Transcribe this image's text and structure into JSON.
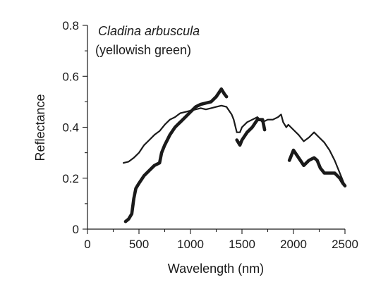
{
  "chart_data": {
    "type": "line",
    "title": "Cladina arbuscula",
    "subtitle": "(yellowish green)",
    "xlabel": "Wavelength (nm)",
    "ylabel": "Reflectance",
    "xlim": [
      0,
      2500
    ],
    "ylim": [
      0,
      0.8
    ],
    "x_ticks": [
      0,
      500,
      1000,
      1500,
      2000,
      2500
    ],
    "x_tick_labels": [
      "0",
      "500",
      "1000",
      "1500",
      "2000",
      "2500"
    ],
    "y_ticks": [
      0,
      0.2,
      0.4,
      0.6,
      0.8
    ],
    "y_tick_labels": [
      "0",
      "0.2",
      "0.4",
      "0.6",
      "0.8"
    ],
    "grid": false,
    "series": [
      {
        "color": "#1a1a1a",
        "style": "thin",
        "segments": [
          [
            [
              350,
              0.26
            ],
            [
              400,
              0.265
            ],
            [
              450,
              0.28
            ],
            [
              500,
              0.3
            ],
            [
              550,
              0.33
            ],
            [
              600,
              0.35
            ],
            [
              650,
              0.37
            ],
            [
              700,
              0.385
            ],
            [
              750,
              0.41
            ],
            [
              800,
              0.43
            ],
            [
              850,
              0.44
            ],
            [
              900,
              0.455
            ],
            [
              950,
              0.46
            ],
            [
              1000,
              0.465
            ],
            [
              1050,
              0.47
            ],
            [
              1100,
              0.475
            ],
            [
              1150,
              0.47
            ],
            [
              1200,
              0.475
            ],
            [
              1250,
              0.48
            ],
            [
              1300,
              0.485
            ],
            [
              1350,
              0.48
            ],
            [
              1400,
              0.45
            ],
            [
              1420,
              0.43
            ],
            [
              1450,
              0.38
            ],
            [
              1480,
              0.38
            ],
            [
              1500,
              0.4
            ],
            [
              1550,
              0.42
            ],
            [
              1600,
              0.43
            ],
            [
              1650,
              0.44
            ],
            [
              1700,
              0.42
            ],
            [
              1750,
              0.43
            ],
            [
              1800,
              0.43
            ],
            [
              1850,
              0.44
            ],
            [
              1880,
              0.45
            ],
            [
              1900,
              0.42
            ],
            [
              1930,
              0.4
            ],
            [
              1950,
              0.41
            ],
            [
              2000,
              0.39
            ],
            [
              2050,
              0.37
            ],
            [
              2100,
              0.345
            ],
            [
              2150,
              0.36
            ],
            [
              2200,
              0.38
            ],
            [
              2250,
              0.36
            ],
            [
              2300,
              0.34
            ],
            [
              2350,
              0.31
            ],
            [
              2400,
              0.27
            ],
            [
              2450,
              0.22
            ],
            [
              2480,
              0.19
            ],
            [
              2500,
              0.17
            ]
          ]
        ]
      },
      {
        "color": "#1a1a1a",
        "style": "thick",
        "segments": [
          [
            [
              370,
              0.03
            ],
            [
              400,
              0.04
            ],
            [
              430,
              0.06
            ],
            [
              450,
              0.12
            ],
            [
              470,
              0.16
            ],
            [
              500,
              0.18
            ],
            [
              550,
              0.21
            ],
            [
              600,
              0.23
            ],
            [
              650,
              0.25
            ],
            [
              700,
              0.26
            ],
            [
              720,
              0.3
            ],
            [
              750,
              0.33
            ],
            [
              800,
              0.37
            ],
            [
              850,
              0.4
            ],
            [
              900,
              0.42
            ],
            [
              950,
              0.44
            ],
            [
              1000,
              0.46
            ],
            [
              1050,
              0.48
            ],
            [
              1100,
              0.49
            ],
            [
              1150,
              0.495
            ],
            [
              1200,
              0.5
            ],
            [
              1250,
              0.52
            ],
            [
              1300,
              0.55
            ],
            [
              1330,
              0.53
            ],
            [
              1350,
              0.52
            ]
          ],
          [
            [
              1450,
              0.35
            ],
            [
              1480,
              0.33
            ],
            [
              1500,
              0.35
            ],
            [
              1550,
              0.38
            ],
            [
              1600,
              0.4
            ],
            [
              1650,
              0.43
            ],
            [
              1700,
              0.43
            ],
            [
              1720,
              0.39
            ]
          ],
          [
            [
              1960,
              0.27
            ],
            [
              1980,
              0.29
            ],
            [
              2000,
              0.31
            ],
            [
              2050,
              0.28
            ],
            [
              2100,
              0.25
            ],
            [
              2150,
              0.27
            ],
            [
              2200,
              0.28
            ],
            [
              2230,
              0.27
            ],
            [
              2260,
              0.24
            ],
            [
              2300,
              0.22
            ],
            [
              2350,
              0.22
            ],
            [
              2400,
              0.22
            ],
            [
              2450,
              0.2
            ],
            [
              2480,
              0.18
            ],
            [
              2500,
              0.17
            ]
          ]
        ]
      }
    ]
  }
}
